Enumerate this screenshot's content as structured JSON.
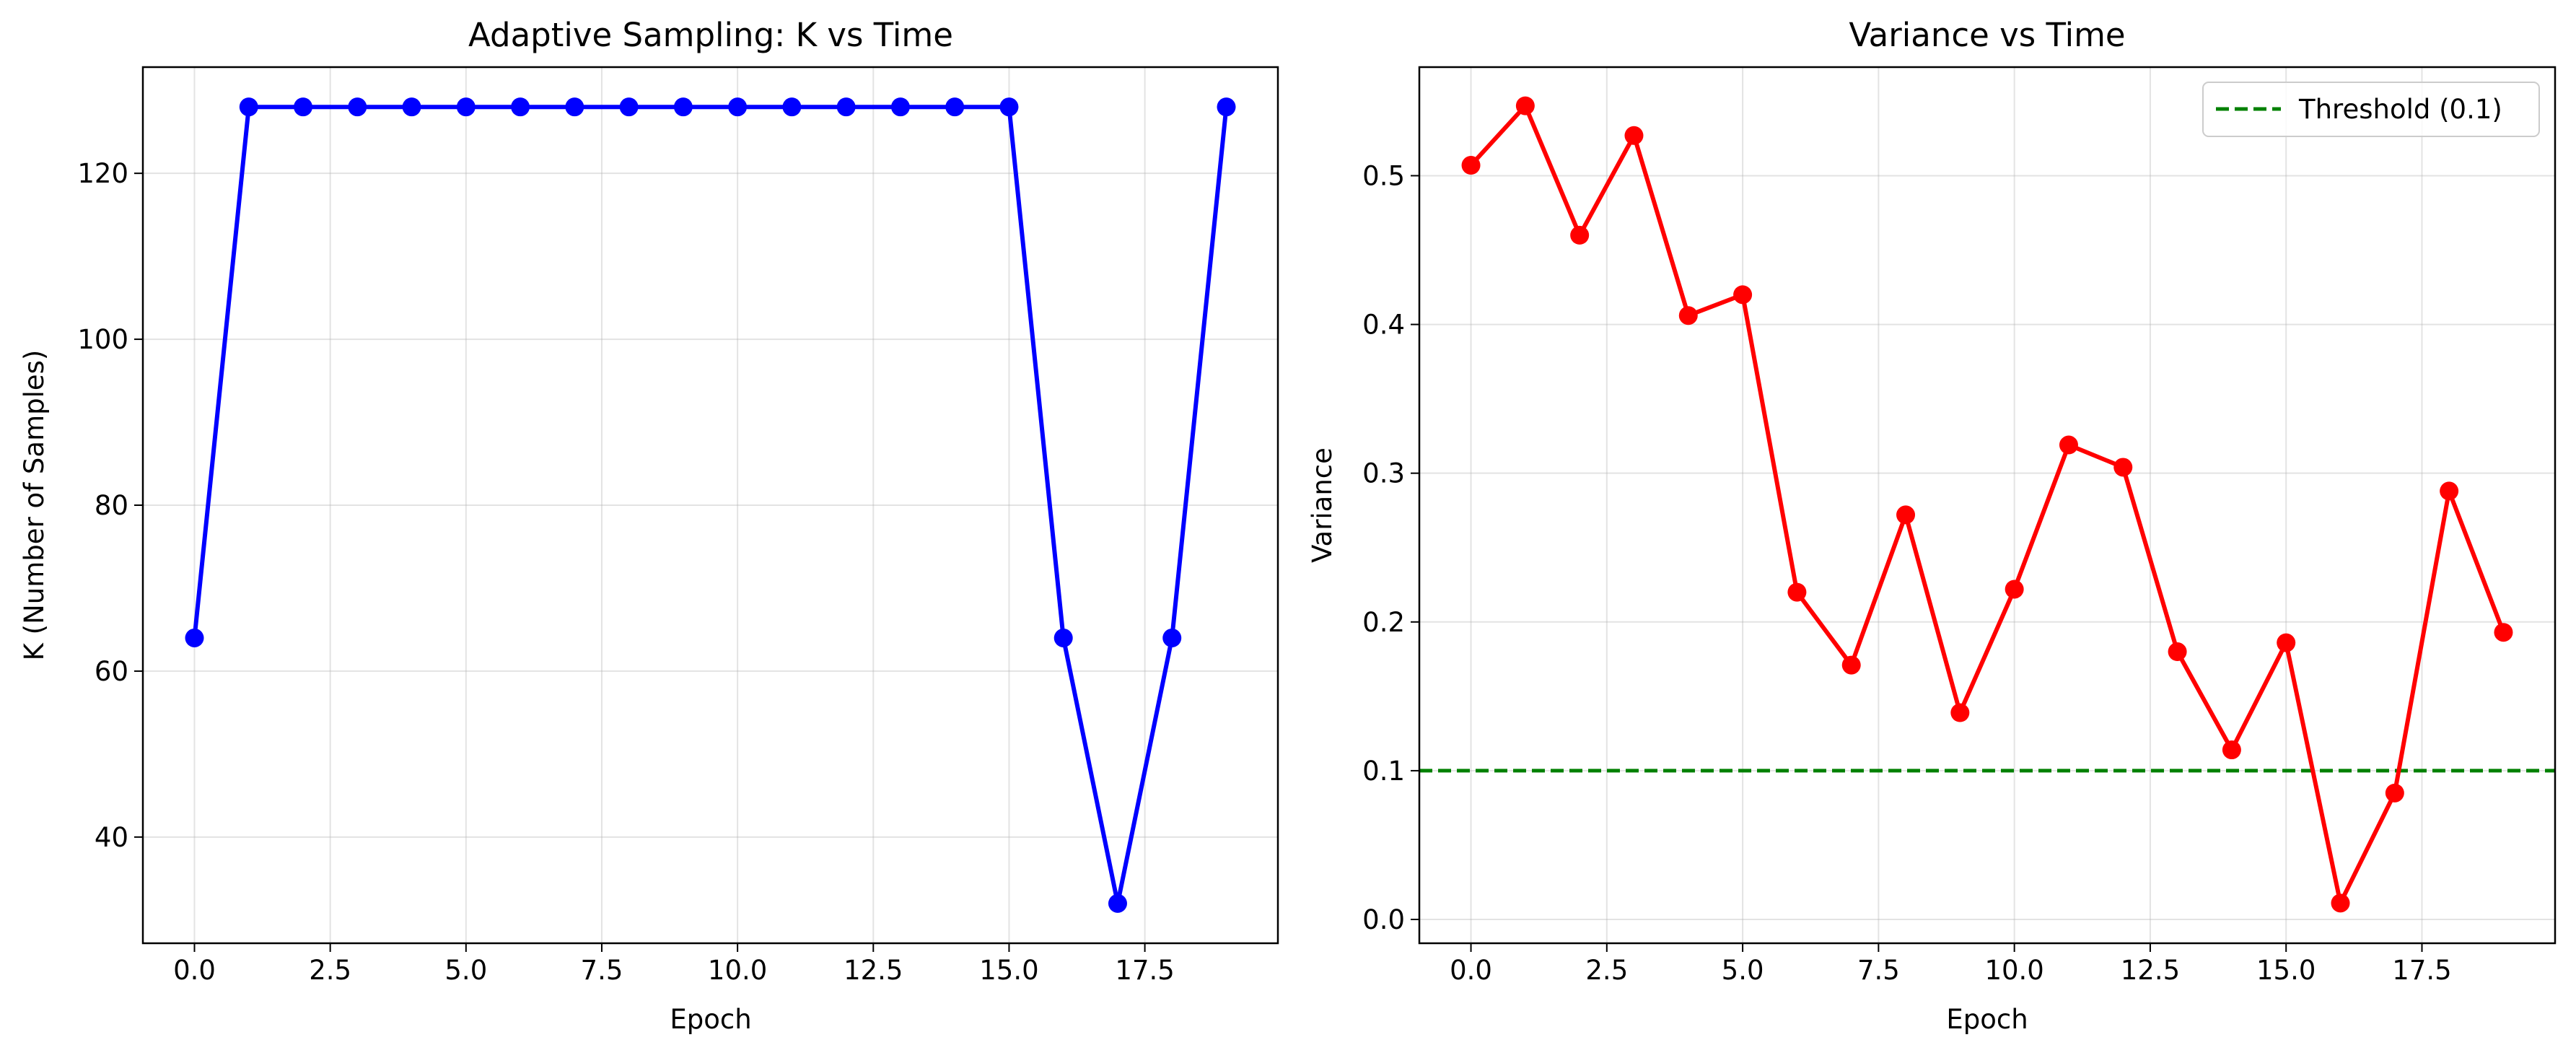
{
  "chart_data": [
    {
      "type": "line",
      "title": "Adaptive Sampling: K vs Time",
      "xlabel": "Epoch",
      "ylabel": "K (Number of Samples)",
      "xlim": [
        -0.95,
        19.95
      ],
      "ylim": [
        27.2,
        132.8
      ],
      "x_ticks": [
        0,
        2.5,
        5,
        7.5,
        10,
        12.5,
        15,
        17.5
      ],
      "x_tick_labels": [
        "0.0",
        "2.5",
        "5.0",
        "7.5",
        "10.0",
        "12.5",
        "15.0",
        "17.5"
      ],
      "y_ticks": [
        40,
        60,
        80,
        100,
        120
      ],
      "y_tick_labels": [
        "40",
        "60",
        "80",
        "100",
        "120"
      ],
      "grid": true,
      "series": [
        {
          "color": "#0000ff",
          "marker": "circle",
          "x": [
            0,
            1,
            2,
            3,
            4,
            5,
            6,
            7,
            8,
            9,
            10,
            11,
            12,
            13,
            14,
            15,
            16,
            17,
            18,
            19
          ],
          "values": [
            64,
            128,
            128,
            128,
            128,
            128,
            128,
            128,
            128,
            128,
            128,
            128,
            128,
            128,
            128,
            128,
            64,
            32,
            64,
            128
          ]
        }
      ]
    },
    {
      "type": "line",
      "title": "Variance vs Time",
      "xlabel": "Epoch",
      "ylabel": "Variance",
      "xlim": [
        -0.95,
        19.95
      ],
      "ylim": [
        -0.016,
        0.573
      ],
      "x_ticks": [
        0,
        2.5,
        5,
        7.5,
        10,
        12.5,
        15,
        17.5
      ],
      "x_tick_labels": [
        "0.0",
        "2.5",
        "5.0",
        "7.5",
        "10.0",
        "12.5",
        "15.0",
        "17.5"
      ],
      "y_ticks": [
        0.0,
        0.1,
        0.2,
        0.3,
        0.4,
        0.5
      ],
      "y_tick_labels": [
        "0.0",
        "0.1",
        "0.2",
        "0.3",
        "0.4",
        "0.5"
      ],
      "grid": true,
      "legend_position": "top-right",
      "series": [
        {
          "color": "#ff0000",
          "marker": "circle",
          "x": [
            0,
            1,
            2,
            3,
            4,
            5,
            6,
            7,
            8,
            9,
            10,
            11,
            12,
            13,
            14,
            15,
            16,
            17,
            18,
            19
          ],
          "values": [
            0.507,
            0.547,
            0.46,
            0.527,
            0.406,
            0.42,
            0.22,
            0.171,
            0.272,
            0.139,
            0.222,
            0.319,
            0.304,
            0.18,
            0.114,
            0.186,
            0.011,
            0.085,
            0.288,
            0.193
          ]
        }
      ],
      "reference_lines": [
        {
          "name": "Threshold (0.1)",
          "y": 0.1,
          "color": "#008000",
          "style": "dashed"
        }
      ]
    }
  ]
}
